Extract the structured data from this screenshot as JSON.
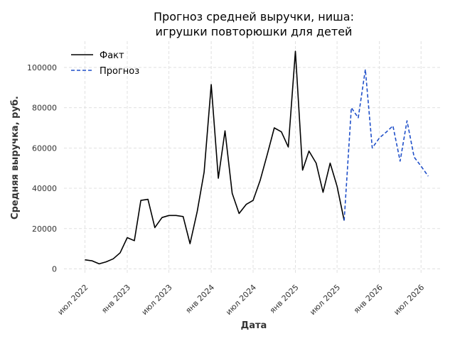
{
  "chart_data": {
    "type": "line",
    "title_line1": "Прогноз средней выручки, ниша:",
    "title_line2": "игрушки повторюшки для детей",
    "xlabel": "Дата",
    "ylabel": "Средняя выручка, руб.",
    "ylim": [
      -3000,
      113000
    ],
    "y_ticks": [
      0,
      20000,
      40000,
      60000,
      80000,
      100000
    ],
    "y_tick_labels": [
      "0",
      "20000",
      "40000",
      "60000",
      "80000",
      "100000"
    ],
    "x_ticks": [
      "2022-07-01",
      "2023-01-01",
      "2023-07-01",
      "2024-01-01",
      "2024-07-01",
      "2025-01-01",
      "2025-07-01",
      "2026-01-01",
      "2026-07-01"
    ],
    "x_tick_labels": [
      "июл 2022",
      "янв 2023",
      "июл 2023",
      "янв 2024",
      "июл 2024",
      "янв 2025",
      "июл 2025",
      "янв 2026",
      "июл 2026"
    ],
    "xlim": [
      "2022-04-01",
      "2026-10-01"
    ],
    "grid": true,
    "legend_position": "top-left",
    "series": [
      {
        "name": "Факт",
        "color": "#000000",
        "style": "solid",
        "x": [
          "2022-07-01",
          "2022-08-01",
          "2022-09-01",
          "2022-10-01",
          "2022-11-01",
          "2022-12-01",
          "2023-01-01",
          "2023-02-01",
          "2023-03-01",
          "2023-04-01",
          "2023-05-01",
          "2023-06-01",
          "2023-07-01",
          "2023-08-01",
          "2023-09-01",
          "2023-10-01",
          "2023-11-01",
          "2023-12-01",
          "2024-01-01",
          "2024-02-01",
          "2024-03-01",
          "2024-04-01",
          "2024-05-01",
          "2024-06-01",
          "2024-07-01",
          "2024-08-01",
          "2024-09-01",
          "2024-10-01",
          "2024-11-01",
          "2024-12-01",
          "2025-01-01",
          "2025-02-01",
          "2025-03-01",
          "2025-04-01",
          "2025-05-01",
          "2025-06-01",
          "2025-07-01",
          "2025-08-01"
        ],
        "values": [
          4500,
          4000,
          2500,
          3500,
          5000,
          8000,
          15500,
          14000,
          34000,
          34500,
          20500,
          25500,
          26500,
          26500,
          26000,
          12500,
          28500,
          48000,
          91500,
          45000,
          68500,
          37500,
          27500,
          32000,
          34000,
          44000,
          57000,
          70000,
          68000,
          60500,
          108000,
          49000,
          58500,
          52500,
          38000,
          52500,
          41000,
          24000
        ]
      },
      {
        "name": "Прогноз",
        "color": "#1f4fc9",
        "style": "dashed",
        "x": [
          "2025-08-01",
          "2025-09-01",
          "2025-10-01",
          "2025-11-01",
          "2025-12-01",
          "2026-01-01",
          "2026-02-01",
          "2026-03-01",
          "2026-04-01",
          "2026-05-01",
          "2026-06-01",
          "2026-07-01",
          "2026-08-01"
        ],
        "values": [
          24000,
          80000,
          75000,
          99000,
          60000,
          65000,
          68000,
          71000,
          53500,
          73500,
          55500,
          51000,
          46000
        ]
      }
    ]
  }
}
